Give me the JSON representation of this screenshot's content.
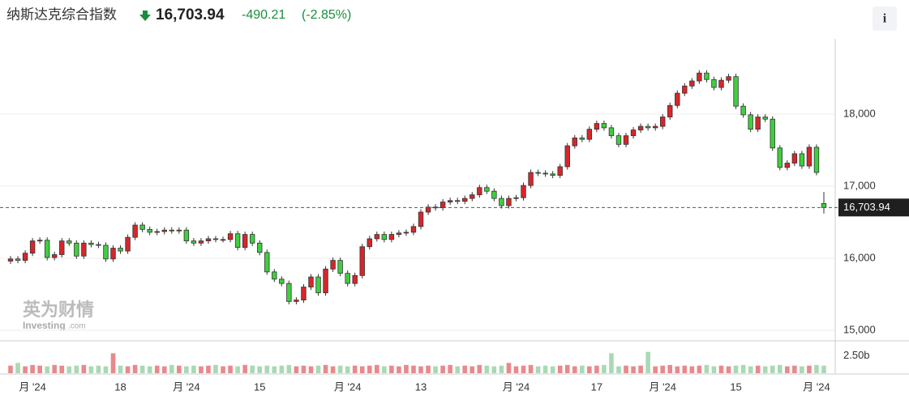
{
  "chart_data": {
    "type": "candlestick",
    "title": "纳斯达克综合指数",
    "last": {
      "value": 16703.94,
      "label": "16,703.94"
    },
    "change": -490.21,
    "change_percent": {
      "value": -2.85,
      "label": "(-2.85%)"
    },
    "info_button": "i",
    "watermark": {
      "brand": "英为财情",
      "site": "Investing",
      "domain": ".com"
    },
    "up_color": "#d7262b",
    "down_color": "#3fcf3f",
    "volume_up_color": "#e8898b",
    "volume_down_color": "#a9d9b4",
    "ylim": [
      14865,
      19022
    ],
    "yticks": [
      {
        "value": 15000,
        "label": "15,000"
      },
      {
        "value": 16000,
        "label": "16,000"
      },
      {
        "value": 17000,
        "label": "17,000"
      },
      {
        "value": 18000,
        "label": "18,000"
      }
    ],
    "volume_lim": [
      0,
      3.3
    ],
    "volume_ticks": [
      {
        "value": 2.5,
        "label": "2.50b"
      }
    ],
    "categories": [
      null,
      null,
      null,
      "月 '24",
      null,
      null,
      null,
      null,
      null,
      null,
      null,
      null,
      null,
      null,
      null,
      "18",
      null,
      null,
      null,
      null,
      null,
      null,
      null,
      null,
      "月 '24",
      null,
      null,
      null,
      null,
      null,
      null,
      null,
      null,
      null,
      "15",
      null,
      null,
      null,
      null,
      null,
      null,
      null,
      null,
      null,
      null,
      null,
      "月 '24",
      null,
      null,
      null,
      null,
      null,
      null,
      null,
      null,
      null,
      "13",
      null,
      null,
      null,
      null,
      null,
      null,
      null,
      null,
      null,
      null,
      null,
      null,
      "月 '24",
      null,
      null,
      null,
      null,
      null,
      null,
      null,
      null,
      null,
      null,
      "17",
      null,
      null,
      null,
      null,
      null,
      null,
      null,
      null,
      "月 '24",
      null,
      null,
      null,
      null,
      null,
      null,
      null,
      null,
      null,
      "15",
      null,
      null,
      null,
      null,
      null,
      null,
      null,
      null,
      null,
      null,
      "月 '24",
      null
    ],
    "open": [
      15960,
      15990,
      15970,
      16070,
      16240,
      16250,
      16010,
      16050,
      16240,
      16210,
      16030,
      16210,
      16190,
      16180,
      15990,
      16140,
      16100,
      16290,
      16460,
      16400,
      16360,
      16370,
      16390,
      16380,
      16390,
      16240,
      16210,
      16240,
      16270,
      16260,
      16260,
      16340,
      16150,
      16330,
      16210,
      16080,
      15810,
      15710,
      15650,
      15400,
      15420,
      15600,
      15740,
      15520,
      15850,
      15970,
      15790,
      15650,
      15760,
      16160,
      16270,
      16330,
      16260,
      16330,
      16350,
      16360,
      16440,
      16640,
      16710,
      16700,
      16780,
      16800,
      16790,
      16830,
      16880,
      16980,
      16930,
      16830,
      16730,
      16830,
      16840,
      17010,
      17190,
      17180,
      17170,
      17150,
      17270,
      17560,
      17670,
      17650,
      17790,
      17870,
      17810,
      17700,
      17580,
      17700,
      17780,
      17830,
      17810,
      17830,
      17960,
      18120,
      18290,
      18390,
      18460,
      18570,
      18480,
      18370,
      18470,
      18520,
      18110,
      17990,
      17790,
      17960,
      17930,
      17530,
      17260,
      17320,
      17450,
      17280,
      17540,
      16760
    ],
    "high": [
      16030,
      16030,
      16110,
      16280,
      16290,
      16290,
      16090,
      16280,
      16280,
      16250,
      16250,
      16250,
      16230,
      16220,
      16180,
      16180,
      16330,
      16500,
      16500,
      16440,
      16410,
      16430,
      16430,
      16430,
      16430,
      16280,
      16280,
      16310,
      16310,
      16300,
      16380,
      16380,
      16370,
      16370,
      16250,
      16120,
      15850,
      15750,
      15690,
      15460,
      15640,
      15780,
      15780,
      15890,
      16010,
      16010,
      15830,
      15800,
      16200,
      16310,
      16370,
      16370,
      16370,
      16390,
      16400,
      16480,
      16680,
      16750,
      16750,
      16820,
      16840,
      16840,
      16870,
      16920,
      17020,
      17020,
      16970,
      16870,
      16870,
      16880,
      17050,
      17230,
      17230,
      17220,
      17210,
      17310,
      17600,
      17710,
      17710,
      17830,
      17910,
      17910,
      17850,
      17740,
      17740,
      17820,
      17870,
      17870,
      17870,
      18000,
      18160,
      18330,
      18430,
      18500,
      18610,
      18610,
      18520,
      18510,
      18560,
      18560,
      18150,
      18030,
      18000,
      18000,
      17970,
      17570,
      17360,
      17490,
      17490,
      17580,
      17580,
      16920
    ],
    "low": [
      15920,
      15930,
      15930,
      16030,
      16200,
      15970,
      15970,
      16010,
      16170,
      15990,
      15990,
      16150,
      16140,
      15950,
      15950,
      16060,
      16060,
      16250,
      16360,
      16320,
      16320,
      16330,
      16340,
      16340,
      16200,
      16170,
      16170,
      16200,
      16220,
      16220,
      16220,
      16110,
      16110,
      16170,
      16040,
      15770,
      15670,
      15610,
      15360,
      15360,
      15380,
      15560,
      15480,
      15480,
      15810,
      15750,
      15610,
      15610,
      15720,
      16120,
      16230,
      16220,
      16220,
      16290,
      16310,
      16320,
      16400,
      16600,
      16660,
      16660,
      16740,
      16750,
      16750,
      16790,
      16840,
      16890,
      16790,
      16690,
      16690,
      16790,
      16800,
      16970,
      17140,
      17130,
      17110,
      17110,
      17230,
      17520,
      17610,
      17610,
      17750,
      17770,
      17660,
      17540,
      17540,
      17660,
      17740,
      17770,
      17770,
      17790,
      17920,
      18080,
      18250,
      18350,
      18420,
      18440,
      18330,
      18330,
      18430,
      18070,
      17950,
      17750,
      17750,
      17890,
      17490,
      17220,
      17220,
      17280,
      17240,
      17240,
      17150,
      16620
    ],
    "close": [
      15990,
      15970,
      16070,
      16240,
      16250,
      16010,
      16050,
      16240,
      16210,
      16030,
      16210,
      16190,
      16180,
      15990,
      16140,
      16100,
      16290,
      16460,
      16400,
      16360,
      16370,
      16390,
      16380,
      16390,
      16240,
      16210,
      16240,
      16270,
      16260,
      16260,
      16340,
      16150,
      16330,
      16210,
      16080,
      15810,
      15710,
      15650,
      15400,
      15420,
      15600,
      15740,
      15520,
      15850,
      15970,
      15790,
      15650,
      15760,
      16160,
      16270,
      16330,
      16260,
      16330,
      16350,
      16360,
      16440,
      16640,
      16710,
      16700,
      16780,
      16800,
      16790,
      16830,
      16880,
      16980,
      16930,
      16830,
      16730,
      16830,
      16840,
      17010,
      17190,
      17180,
      17170,
      17150,
      17270,
      17560,
      17670,
      17650,
      17790,
      17870,
      17810,
      17700,
      17580,
      17700,
      17780,
      17830,
      17810,
      17830,
      17960,
      18120,
      18290,
      18390,
      18460,
      18570,
      18480,
      18370,
      18470,
      18520,
      18110,
      17990,
      17790,
      17960,
      17930,
      17530,
      17260,
      17320,
      17450,
      17280,
      17540,
      17190,
      16703.94
    ],
    "volume": [
      1.1,
      1.5,
      1.0,
      1.2,
      1.1,
      1.0,
      1.2,
      1.1,
      1.0,
      1.1,
      1.2,
      1.0,
      1.1,
      1.0,
      2.9,
      1.1,
      1.0,
      1.2,
      1.1,
      1.0,
      1.1,
      1.0,
      1.2,
      1.1,
      1.0,
      1.1,
      1.0,
      1.1,
      1.2,
      1.0,
      1.1,
      1.0,
      1.2,
      1.1,
      1.0,
      1.1,
      1.0,
      1.1,
      1.2,
      1.0,
      1.1,
      1.0,
      1.1,
      1.2,
      1.0,
      1.1,
      1.0,
      1.1,
      1.0,
      1.1,
      1.2,
      1.0,
      1.1,
      1.0,
      1.2,
      1.1,
      1.0,
      1.1,
      1.0,
      1.1,
      1.2,
      1.0,
      1.1,
      1.0,
      1.2,
      1.1,
      1.0,
      1.1,
      1.5,
      1.0,
      1.1,
      1.2,
      1.0,
      1.1,
      1.0,
      1.1,
      1.2,
      1.0,
      1.1,
      1.0,
      1.1,
      1.2,
      2.9,
      1.0,
      1.1,
      1.0,
      1.1,
      3.1,
      1.0,
      1.1,
      1.2,
      1.0,
      1.1,
      1.0,
      1.1,
      1.2,
      1.0,
      1.1,
      1.0,
      1.1,
      1.2,
      1.0,
      1.1,
      1.0,
      1.1,
      1.2,
      1.0,
      1.1,
      1.0,
      1.1,
      1.2,
      1.1
    ]
  }
}
